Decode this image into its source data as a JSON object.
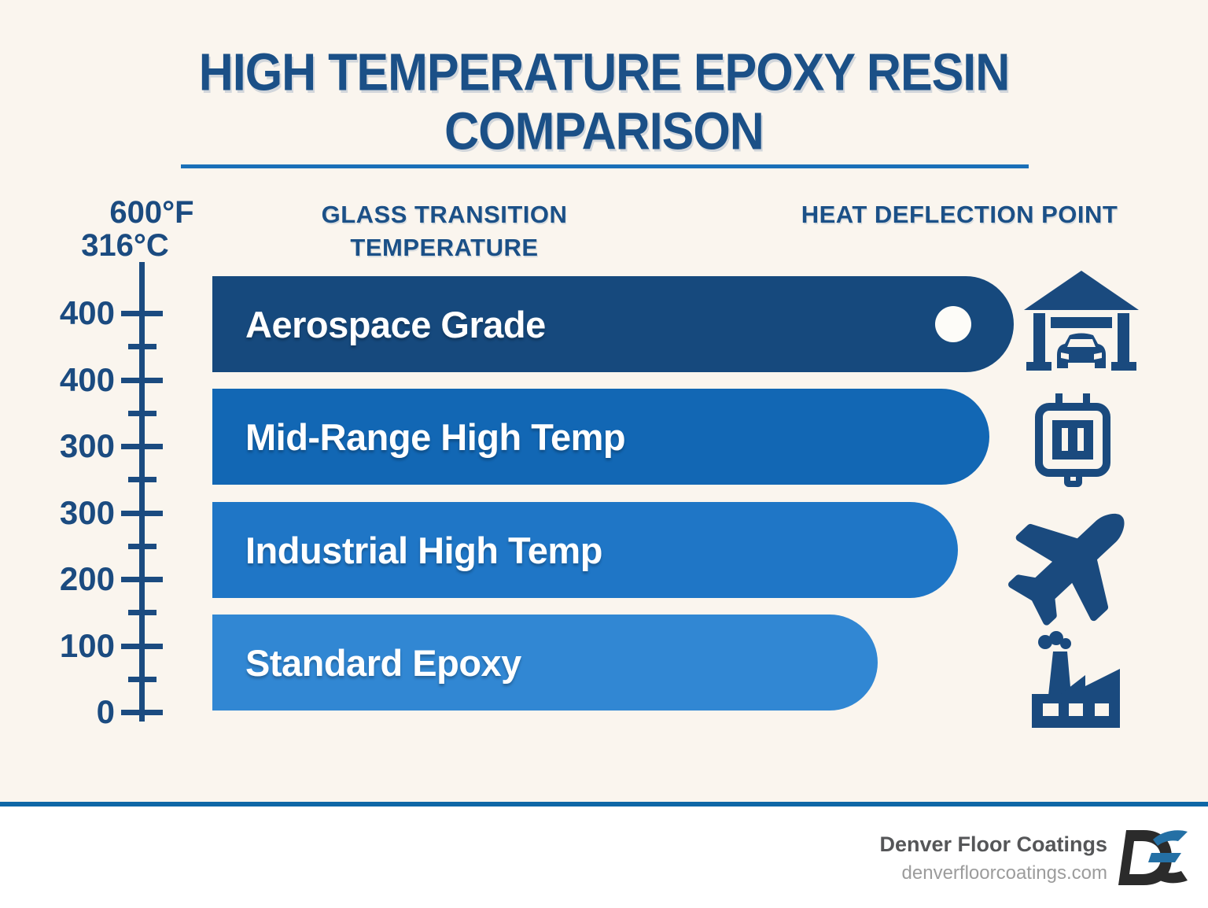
{
  "title": {
    "line1": "HIGH TEMPERATURE EPOXY RESIN",
    "line2": "COMPARISON"
  },
  "headers": {
    "glass_transition_line1": "GLASS TRANSITION",
    "glass_transition_line2": "TEMPERATURE",
    "heat_deflection": "HEAT DEFLECTION POINT"
  },
  "scale": {
    "fahrenheit_label": "600°F",
    "celsius_label": "316°C",
    "tick_labels": [
      "400",
      "400",
      "300",
      "300",
      "200",
      "100",
      "0"
    ]
  },
  "chart_data": {
    "type": "bar",
    "orientation": "horizontal",
    "title": "HIGH TEMPERATURE EPOXY RESIN COMPARISON",
    "column_headers": [
      "GLASS TRANSITION TEMPERATURE",
      "HEAT DEFLECTION POINT"
    ],
    "axis": {
      "max_label_f": "600°F",
      "max_label_c": "316°C",
      "tick_labels": [
        "400",
        "400",
        "300",
        "300",
        "200",
        "100",
        "0"
      ],
      "min": 0,
      "max_f": 600,
      "max_c": 316,
      "grid": false
    },
    "categories": [
      "Aerospace Grade",
      "Mid-Range High Temp",
      "Industrial High Temp",
      "Standard Epoxy"
    ],
    "series": [
      {
        "name": "relative bar length (% of longest)",
        "values": [
          100,
          97,
          93,
          83
        ]
      }
    ],
    "bar_colors": [
      "#16497d",
      "#1267b4",
      "#1f76c6",
      "#3187d3"
    ],
    "endpoint_marker": {
      "row_index": 0,
      "style": "white-dot"
    },
    "row_icons": [
      "garage-car-icon",
      "power-outlet-icon",
      "airplane-icon",
      "factory-icon"
    ]
  },
  "colors": {
    "background": "#faf5ee",
    "title_text": "#1b5087",
    "scale_ink": "#1b4b80",
    "divider": "#1a70b8",
    "footer_rule": "#0f67a6",
    "footer_background": "#ffffff",
    "icon_ink": "#1a4a7e"
  },
  "footer": {
    "company": "Denver Floor Coatings",
    "website": "denverfloorcoatings.com",
    "logo_monogram": "DE"
  }
}
